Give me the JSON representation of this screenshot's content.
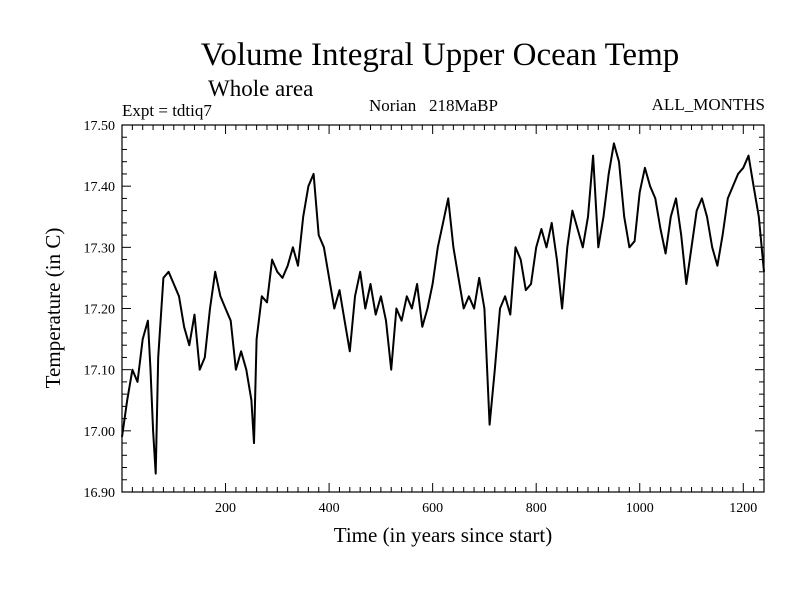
{
  "chart_data": {
    "type": "line",
    "title": "Volume Integral Upper Ocean Temp",
    "subtitle": "Whole area",
    "expt_label": "Expt = tdtiq7",
    "run_label": "Norian   218MaBP",
    "months_label": "ALL_MONTHS",
    "xlabel": "Time (in years since start)",
    "ylabel": "Temperature (in C)",
    "xlim": [
      0,
      1240
    ],
    "ylim": [
      16.9,
      17.5
    ],
    "x_major_ticks": [
      200,
      400,
      600,
      800,
      1000,
      1200
    ],
    "x_tick_labels": [
      "200",
      "400",
      "600",
      "800",
      "1000",
      "1200"
    ],
    "y_major_ticks": [
      16.9,
      17.0,
      17.1,
      17.2,
      17.3,
      17.4,
      17.5
    ],
    "y_tick_labels": [
      "16.90",
      "17.00",
      "17.10",
      "17.20",
      "17.30",
      "17.40",
      "17.50"
    ],
    "x_minor_step": 20,
    "y_minor_step": 0.02,
    "grid": false,
    "series": [
      {
        "name": "Volume integral upper ocean temperature",
        "color": "#000000",
        "x": [
          0,
          10,
          20,
          30,
          40,
          50,
          55,
          60,
          65,
          70,
          80,
          90,
          100,
          110,
          120,
          130,
          140,
          150,
          160,
          170,
          180,
          190,
          200,
          210,
          220,
          230,
          240,
          250,
          255,
          260,
          270,
          280,
          290,
          300,
          310,
          320,
          330,
          340,
          350,
          360,
          370,
          380,
          390,
          400,
          410,
          420,
          430,
          440,
          450,
          460,
          470,
          480,
          490,
          500,
          510,
          520,
          530,
          540,
          550,
          560,
          570,
          580,
          590,
          600,
          610,
          620,
          630,
          640,
          650,
          660,
          670,
          680,
          690,
          700,
          710,
          720,
          730,
          740,
          750,
          760,
          770,
          780,
          790,
          800,
          810,
          820,
          830,
          840,
          850,
          860,
          870,
          880,
          890,
          900,
          910,
          920,
          930,
          940,
          950,
          960,
          970,
          980,
          990,
          1000,
          1010,
          1020,
          1030,
          1040,
          1050,
          1060,
          1070,
          1080,
          1090,
          1100,
          1110,
          1120,
          1130,
          1140,
          1150,
          1160,
          1170,
          1180,
          1190,
          1200,
          1210,
          1220,
          1230,
          1240
        ],
        "values": [
          16.99,
          17.05,
          17.1,
          17.08,
          17.15,
          17.18,
          17.1,
          17.0,
          16.93,
          17.12,
          17.25,
          17.26,
          17.24,
          17.22,
          17.17,
          17.14,
          17.19,
          17.1,
          17.12,
          17.2,
          17.26,
          17.22,
          17.2,
          17.18,
          17.1,
          17.13,
          17.1,
          17.05,
          16.98,
          17.15,
          17.22,
          17.21,
          17.28,
          17.26,
          17.25,
          17.27,
          17.3,
          17.27,
          17.35,
          17.4,
          17.42,
          17.32,
          17.3,
          17.25,
          17.2,
          17.23,
          17.18,
          17.13,
          17.22,
          17.26,
          17.2,
          17.24,
          17.19,
          17.22,
          17.18,
          17.1,
          17.2,
          17.18,
          17.22,
          17.2,
          17.24,
          17.17,
          17.2,
          17.24,
          17.3,
          17.34,
          17.38,
          17.3,
          17.25,
          17.2,
          17.22,
          17.2,
          17.25,
          17.2,
          17.01,
          17.1,
          17.2,
          17.22,
          17.19,
          17.3,
          17.28,
          17.23,
          17.24,
          17.3,
          17.33,
          17.3,
          17.34,
          17.28,
          17.2,
          17.3,
          17.36,
          17.33,
          17.3,
          17.35,
          17.45,
          17.3,
          17.35,
          17.42,
          17.47,
          17.44,
          17.35,
          17.3,
          17.31,
          17.39,
          17.43,
          17.4,
          17.38,
          17.33,
          17.29,
          17.35,
          17.38,
          17.32,
          17.24,
          17.3,
          17.36,
          17.38,
          17.35,
          17.3,
          17.27,
          17.32,
          17.38,
          17.4,
          17.42,
          17.43,
          17.45,
          17.4,
          17.35,
          17.26
        ]
      }
    ]
  }
}
